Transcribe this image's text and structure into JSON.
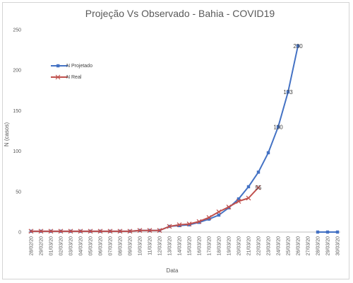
{
  "chart_data": {
    "type": "line",
    "title": "Projeção Vs Observado - Bahia - COVID19",
    "xlabel": "Data",
    "ylabel": "N (casos)",
    "ylim": [
      0,
      250
    ],
    "yticks": [
      0,
      50,
      100,
      150,
      200,
      250
    ],
    "grid": false,
    "legend_position": "upper-left",
    "categories": [
      "28/02/20",
      "29/02/20",
      "01/03/20",
      "02/03/20",
      "03/03/20",
      "04/03/20",
      "05/03/20",
      "06/03/20",
      "07/03/20",
      "08/03/20",
      "09/03/20",
      "10/03/20",
      "11/03/20",
      "12/03/20",
      "13/03/20",
      "14/03/20",
      "15/03/20",
      "16/03/20",
      "17/03/20",
      "18/03/20",
      "19/03/20",
      "20/03/20",
      "21/03/20",
      "22/03/20",
      "23/03/20",
      "24/03/20",
      "25/03/20",
      "26/03/20",
      "27/03/20",
      "28/03/20",
      "29/03/20",
      "30/03/20"
    ],
    "series": [
      {
        "name": "N Projetado",
        "color": "#4472c4",
        "values": [
          1,
          1,
          1,
          1,
          1,
          1,
          1,
          1,
          1,
          1,
          1,
          2,
          2,
          2,
          7,
          8,
          9,
          12,
          16,
          21,
          30,
          41,
          56,
          74,
          98,
          130,
          173,
          230,
          null,
          0,
          0,
          0
        ]
      },
      {
        "name": "N Real",
        "color": "#c0504d",
        "values": [
          1,
          1,
          1,
          1,
          1,
          1,
          1,
          1,
          1,
          1,
          1,
          2,
          2,
          2,
          7,
          9,
          10,
          13,
          18,
          25,
          31,
          38,
          42,
          55,
          null,
          null,
          null,
          null,
          null,
          null,
          null,
          null
        ]
      }
    ],
    "data_labels": [
      {
        "series": 0,
        "index": 25,
        "text": "130"
      },
      {
        "series": 0,
        "index": 26,
        "text": "173"
      },
      {
        "series": 0,
        "index": 27,
        "text": "230"
      },
      {
        "series": 1,
        "index": 23,
        "text": "55"
      }
    ]
  }
}
